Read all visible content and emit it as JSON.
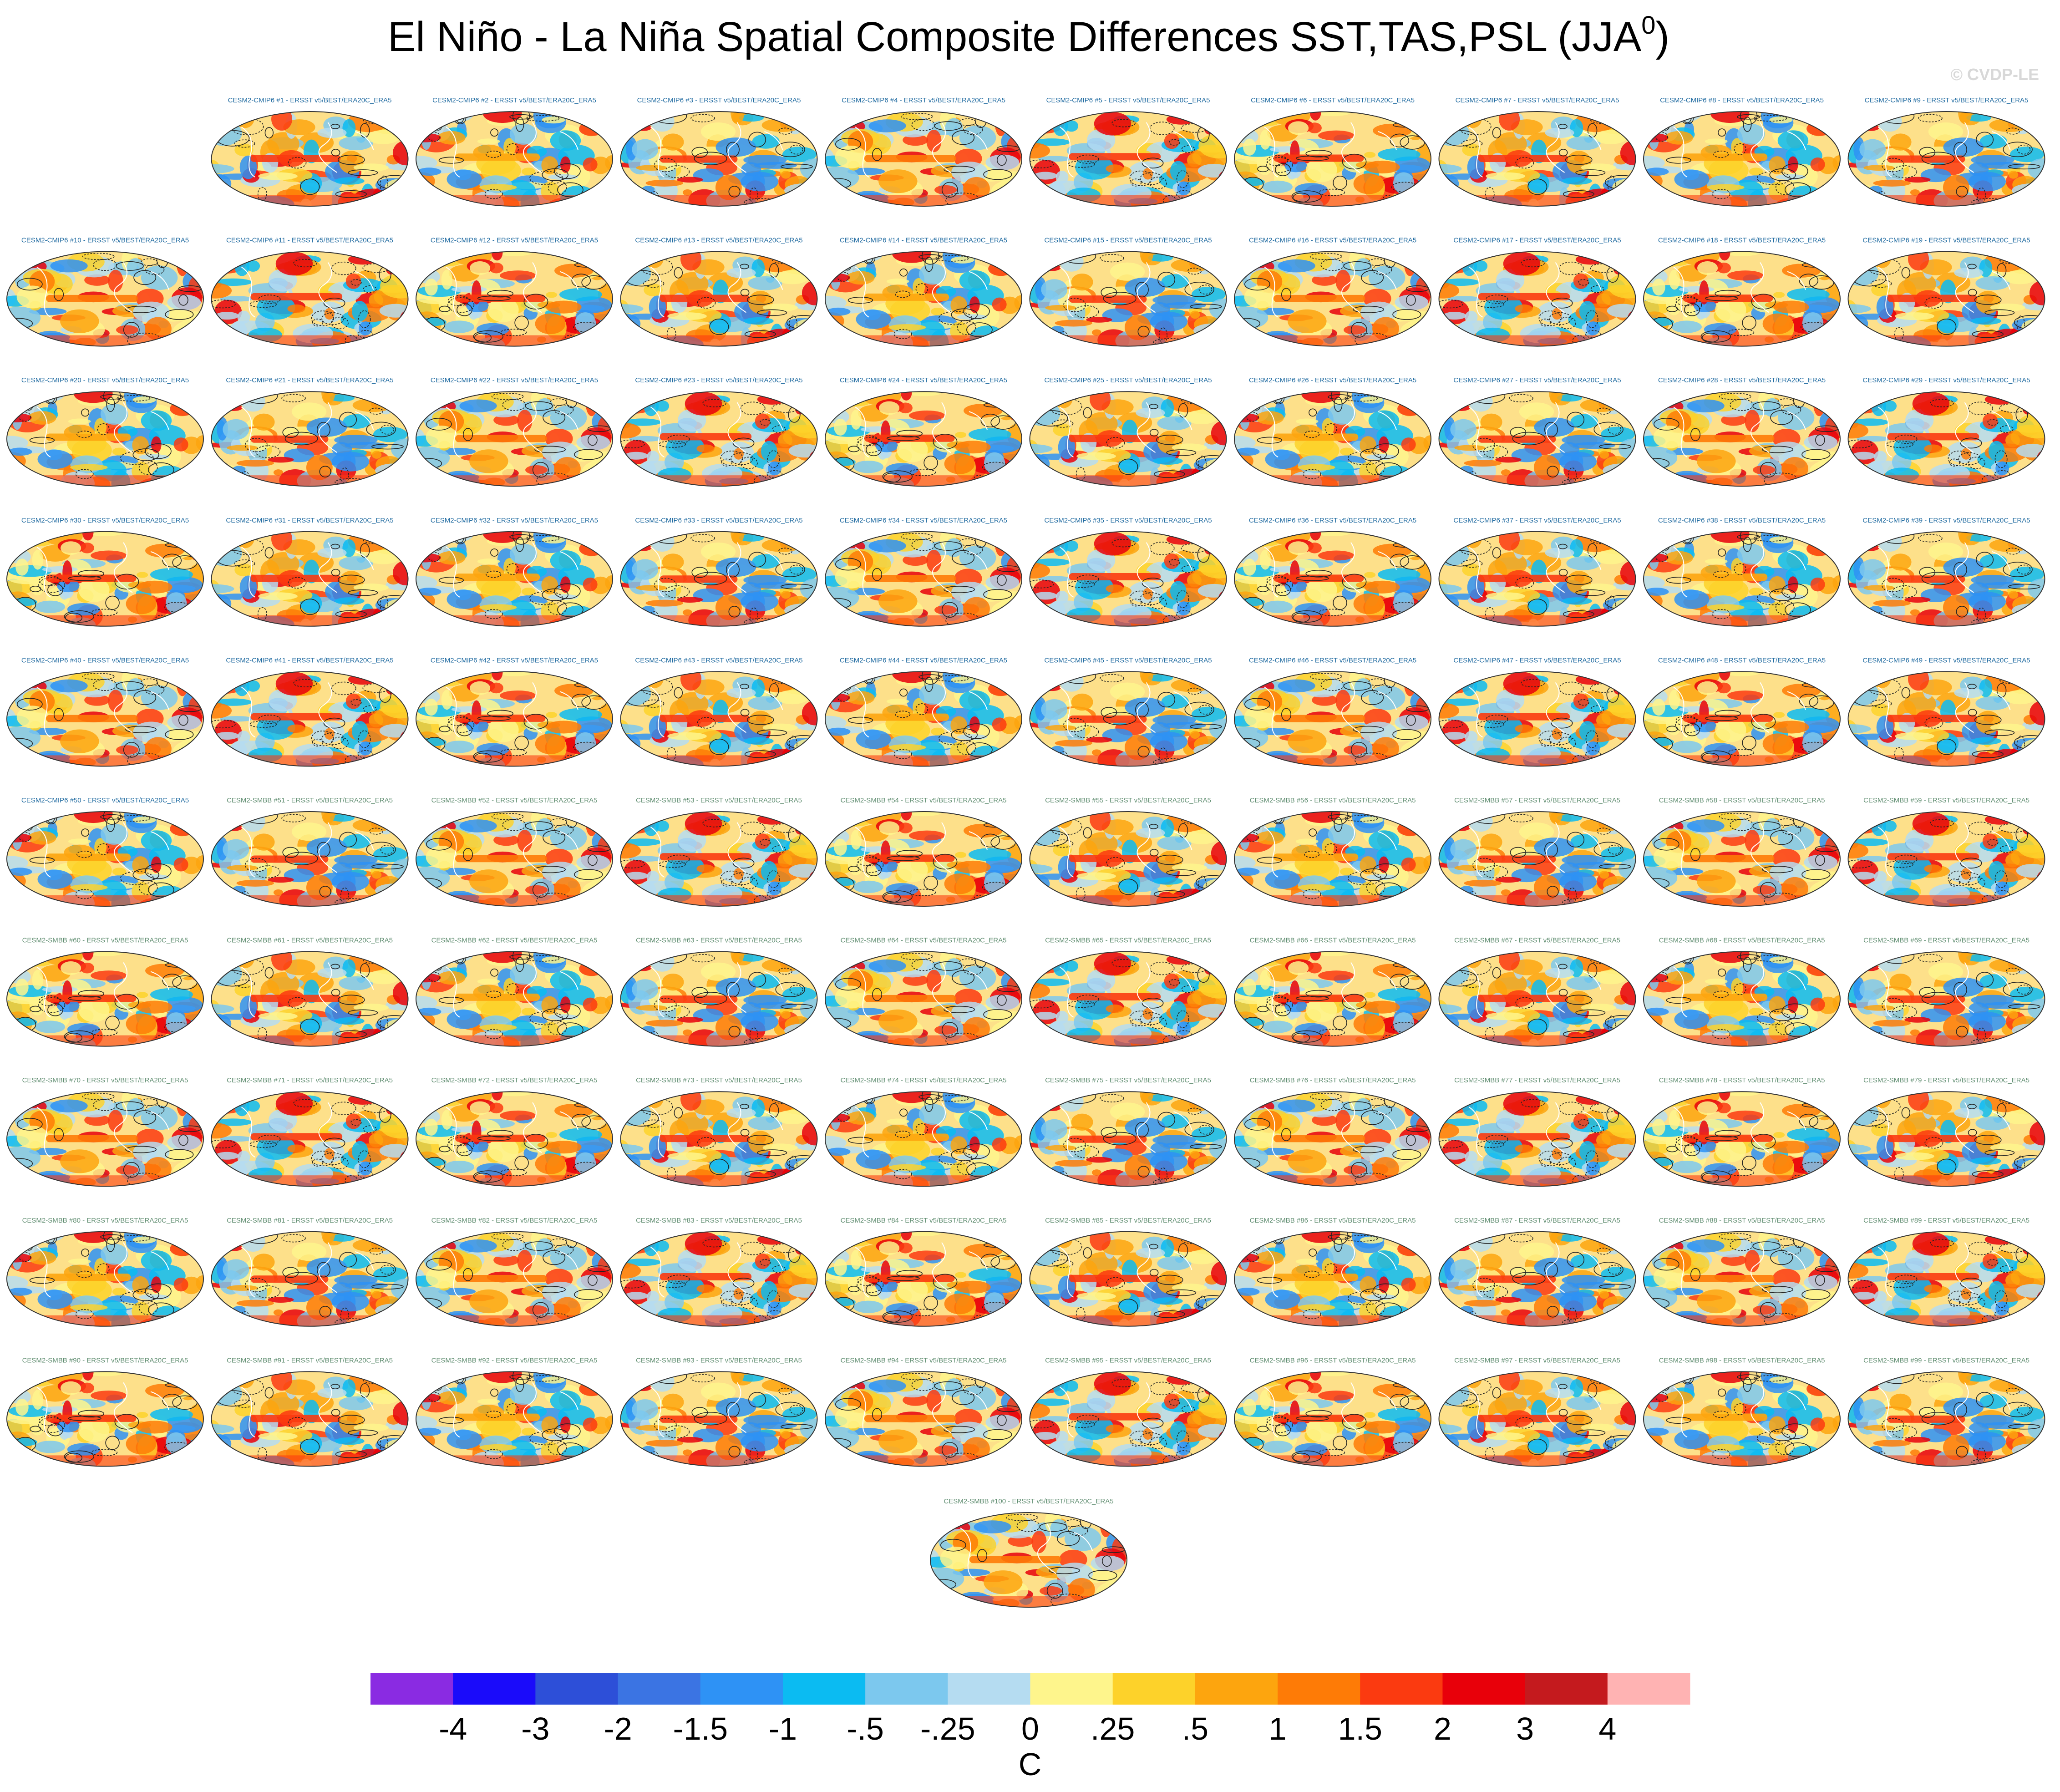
{
  "header": {
    "title": "El Niño - La Niña Spatial Composite Differences SST,TAS,PSL (JJA",
    "title_superscript": "0",
    "title_suffix": ")",
    "watermark": "© CVDP-LE"
  },
  "panels": [
    {
      "label": "CESM2-CMIP6 #1 - ERSST v5/BEST/ERA20C_ERA5"
    },
    {
      "label": "CESM2-CMIP6 #2 - ERSST v5/BEST/ERA20C_ERA5"
    },
    {
      "label": "CESM2-CMIP6 #3 - ERSST v5/BEST/ERA20C_ERA5"
    },
    {
      "label": "CESM2-CMIP6 #4 - ERSST v5/BEST/ERA20C_ERA5"
    },
    {
      "label": "CESM2-CMIP6 #5 - ERSST v5/BEST/ERA20C_ERA5"
    },
    {
      "label": "CESM2-CMIP6 #6 - ERSST v5/BEST/ERA20C_ERA5"
    },
    {
      "label": "CESM2-CMIP6 #7 - ERSST v5/BEST/ERA20C_ERA5"
    },
    {
      "label": "CESM2-CMIP6 #8 - ERSST v5/BEST/ERA20C_ERA5"
    },
    {
      "label": "CESM2-CMIP6 #9 - ERSST v5/BEST/ERA20C_ERA5"
    },
    {
      "label": "CESM2-CMIP6 #10 - ERSST v5/BEST/ERA20C_ERA5"
    },
    {
      "label": "CESM2-CMIP6 #11 - ERSST v5/BEST/ERA20C_ERA5"
    },
    {
      "label": "CESM2-CMIP6 #12 - ERSST v5/BEST/ERA20C_ERA5"
    },
    {
      "label": "CESM2-CMIP6 #13 - ERSST v5/BEST/ERA20C_ERA5"
    },
    {
      "label": "CESM2-CMIP6 #14 - ERSST v5/BEST/ERA20C_ERA5"
    },
    {
      "label": "CESM2-CMIP6 #15 - ERSST v5/BEST/ERA20C_ERA5"
    },
    {
      "label": "CESM2-CMIP6 #16 - ERSST v5/BEST/ERA20C_ERA5"
    },
    {
      "label": "CESM2-CMIP6 #17 - ERSST v5/BEST/ERA20C_ERA5"
    },
    {
      "label": "CESM2-CMIP6 #18 - ERSST v5/BEST/ERA20C_ERA5"
    },
    {
      "label": "CESM2-CMIP6 #19 - ERSST v5/BEST/ERA20C_ERA5"
    },
    {
      "label": "CESM2-CMIP6 #20 - ERSST v5/BEST/ERA20C_ERA5"
    },
    {
      "label": "CESM2-CMIP6 #21 - ERSST v5/BEST/ERA20C_ERA5"
    },
    {
      "label": "CESM2-CMIP6 #22 - ERSST v5/BEST/ERA20C_ERA5"
    },
    {
      "label": "CESM2-CMIP6 #23 - ERSST v5/BEST/ERA20C_ERA5"
    },
    {
      "label": "CESM2-CMIP6 #24 - ERSST v5/BEST/ERA20C_ERA5"
    },
    {
      "label": "CESM2-CMIP6 #25 - ERSST v5/BEST/ERA20C_ERA5"
    },
    {
      "label": "CESM2-CMIP6 #26 - ERSST v5/BEST/ERA20C_ERA5"
    },
    {
      "label": "CESM2-CMIP6 #27 - ERSST v5/BEST/ERA20C_ERA5"
    },
    {
      "label": "CESM2-CMIP6 #28 - ERSST v5/BEST/ERA20C_ERA5"
    },
    {
      "label": "CESM2-CMIP6 #29 - ERSST v5/BEST/ERA20C_ERA5"
    },
    {
      "label": "CESM2-CMIP6 #30 - ERSST v5/BEST/ERA20C_ERA5"
    },
    {
      "label": "CESM2-CMIP6 #31 - ERSST v5/BEST/ERA20C_ERA5"
    },
    {
      "label": "CESM2-CMIP6 #32 - ERSST v5/BEST/ERA20C_ERA5"
    },
    {
      "label": "CESM2-CMIP6 #33 - ERSST v5/BEST/ERA20C_ERA5"
    },
    {
      "label": "CESM2-CMIP6 #34 - ERSST v5/BEST/ERA20C_ERA5"
    },
    {
      "label": "CESM2-CMIP6 #35 - ERSST v5/BEST/ERA20C_ERA5"
    },
    {
      "label": "CESM2-CMIP6 #36 - ERSST v5/BEST/ERA20C_ERA5"
    },
    {
      "label": "CESM2-CMIP6 #37 - ERSST v5/BEST/ERA20C_ERA5"
    },
    {
      "label": "CESM2-CMIP6 #38 - ERSST v5/BEST/ERA20C_ERA5"
    },
    {
      "label": "CESM2-CMIP6 #39 - ERSST v5/BEST/ERA20C_ERA5"
    },
    {
      "label": "CESM2-CMIP6 #40 - ERSST v5/BEST/ERA20C_ERA5"
    },
    {
      "label": "CESM2-CMIP6 #41 - ERSST v5/BEST/ERA20C_ERA5"
    },
    {
      "label": "CESM2-CMIP6 #42 - ERSST v5/BEST/ERA20C_ERA5"
    },
    {
      "label": "CESM2-CMIP6 #43 - ERSST v5/BEST/ERA20C_ERA5"
    },
    {
      "label": "CESM2-CMIP6 #44 - ERSST v5/BEST/ERA20C_ERA5"
    },
    {
      "label": "CESM2-CMIP6 #45 - ERSST v5/BEST/ERA20C_ERA5"
    },
    {
      "label": "CESM2-CMIP6 #46 - ERSST v5/BEST/ERA20C_ERA5"
    },
    {
      "label": "CESM2-CMIP6 #47 - ERSST v5/BEST/ERA20C_ERA5"
    },
    {
      "label": "CESM2-CMIP6 #48 - ERSST v5/BEST/ERA20C_ERA5"
    },
    {
      "label": "CESM2-CMIP6 #49 - ERSST v5/BEST/ERA20C_ERA5"
    },
    {
      "label": "CESM2-CMIP6 #50 - ERSST v5/BEST/ERA20C_ERA5"
    },
    {
      "label": "CESM2-SMBB #51 - ERSST v5/BEST/ERA20C_ERA5"
    },
    {
      "label": "CESM2-SMBB #52 - ERSST v5/BEST/ERA20C_ERA5"
    },
    {
      "label": "CESM2-SMBB #53 - ERSST v5/BEST/ERA20C_ERA5"
    },
    {
      "label": "CESM2-SMBB #54 - ERSST v5/BEST/ERA20C_ERA5"
    },
    {
      "label": "CESM2-SMBB #55 - ERSST v5/BEST/ERA20C_ERA5"
    },
    {
      "label": "CESM2-SMBB #56 - ERSST v5/BEST/ERA20C_ERA5"
    },
    {
      "label": "CESM2-SMBB #57 - ERSST v5/BEST/ERA20C_ERA5"
    },
    {
      "label": "CESM2-SMBB #58 - ERSST v5/BEST/ERA20C_ERA5"
    },
    {
      "label": "CESM2-SMBB #59 - ERSST v5/BEST/ERA20C_ERA5"
    },
    {
      "label": "CESM2-SMBB #60 - ERSST v5/BEST/ERA20C_ERA5"
    },
    {
      "label": "CESM2-SMBB #61 - ERSST v5/BEST/ERA20C_ERA5"
    },
    {
      "label": "CESM2-SMBB #62 - ERSST v5/BEST/ERA20C_ERA5"
    },
    {
      "label": "CESM2-SMBB #63 - ERSST v5/BEST/ERA20C_ERA5"
    },
    {
      "label": "CESM2-SMBB #64 - ERSST v5/BEST/ERA20C_ERA5"
    },
    {
      "label": "CESM2-SMBB #65 - ERSST v5/BEST/ERA20C_ERA5"
    },
    {
      "label": "CESM2-SMBB #66 - ERSST v5/BEST/ERA20C_ERA5"
    },
    {
      "label": "CESM2-SMBB #67 - ERSST v5/BEST/ERA20C_ERA5"
    },
    {
      "label": "CESM2-SMBB #68 - ERSST v5/BEST/ERA20C_ERA5"
    },
    {
      "label": "CESM2-SMBB #69 - ERSST v5/BEST/ERA20C_ERA5"
    },
    {
      "label": "CESM2-SMBB #70 - ERSST v5/BEST/ERA20C_ERA5"
    },
    {
      "label": "CESM2-SMBB #71 - ERSST v5/BEST/ERA20C_ERA5"
    },
    {
      "label": "CESM2-SMBB #72 - ERSST v5/BEST/ERA20C_ERA5"
    },
    {
      "label": "CESM2-SMBB #73 - ERSST v5/BEST/ERA20C_ERA5"
    },
    {
      "label": "CESM2-SMBB #74 - ERSST v5/BEST/ERA20C_ERA5"
    },
    {
      "label": "CESM2-SMBB #75 - ERSST v5/BEST/ERA20C_ERA5"
    },
    {
      "label": "CESM2-SMBB #76 - ERSST v5/BEST/ERA20C_ERA5"
    },
    {
      "label": "CESM2-SMBB #77 - ERSST v5/BEST/ERA20C_ERA5"
    },
    {
      "label": "CESM2-SMBB #78 - ERSST v5/BEST/ERA20C_ERA5"
    },
    {
      "label": "CESM2-SMBB #79 - ERSST v5/BEST/ERA20C_ERA5"
    },
    {
      "label": "CESM2-SMBB #80 - ERSST v5/BEST/ERA20C_ERA5"
    },
    {
      "label": "CESM2-SMBB #81 - ERSST v5/BEST/ERA20C_ERA5"
    },
    {
      "label": "CESM2-SMBB #82 - ERSST v5/BEST/ERA20C_ERA5"
    },
    {
      "label": "CESM2-SMBB #83 - ERSST v5/BEST/ERA20C_ERA5"
    },
    {
      "label": "CESM2-SMBB #84 - ERSST v5/BEST/ERA20C_ERA5"
    },
    {
      "label": "CESM2-SMBB #85 - ERSST v5/BEST/ERA20C_ERA5"
    },
    {
      "label": "CESM2-SMBB #86 - ERSST v5/BEST/ERA20C_ERA5"
    },
    {
      "label": "CESM2-SMBB #87 - ERSST v5/BEST/ERA20C_ERA5"
    },
    {
      "label": "CESM2-SMBB #88 - ERSST v5/BEST/ERA20C_ERA5"
    },
    {
      "label": "CESM2-SMBB #89 - ERSST v5/BEST/ERA20C_ERA5"
    },
    {
      "label": "CESM2-SMBB #90 - ERSST v5/BEST/ERA20C_ERA5"
    },
    {
      "label": "CESM2-SMBB #91 - ERSST v5/BEST/ERA20C_ERA5"
    },
    {
      "label": "CESM2-SMBB #92 - ERSST v5/BEST/ERA20C_ERA5"
    },
    {
      "label": "CESM2-SMBB #93 - ERSST v5/BEST/ERA20C_ERA5"
    },
    {
      "label": "CESM2-SMBB #94 - ERSST v5/BEST/ERA20C_ERA5"
    },
    {
      "label": "CESM2-SMBB #95 - ERSST v5/BEST/ERA20C_ERA5"
    },
    {
      "label": "CESM2-SMBB #96 - ERSST v5/BEST/ERA20C_ERA5"
    },
    {
      "label": "CESM2-SMBB #97 - ERSST v5/BEST/ERA20C_ERA5"
    },
    {
      "label": "CESM2-SMBB #98 - ERSST v5/BEST/ERA20C_ERA5"
    },
    {
      "label": "CESM2-SMBB #99 - ERSST v5/BEST/ERA20C_ERA5"
    },
    {
      "label": "CESM2-SMBB #100 - ERSST v5/BEST/ERA20C_ERA5"
    }
  ],
  "colorbar": {
    "colors": [
      "#8a2be2",
      "#1a0bfa",
      "#2d4fd8",
      "#3b74e3",
      "#2e92f5",
      "#0bbbf2",
      "#7cc8ee",
      "#b5dcf1",
      "#fef58c",
      "#fdd22a",
      "#fda50e",
      "#fe7b06",
      "#fb3a10",
      "#e8000a",
      "#c41a1e",
      "#ffb3b3"
    ],
    "labels": [
      "-4",
      "-3",
      "-2",
      "-1.5",
      "-1",
      "-.5",
      "-.25",
      "0",
      ".25",
      ".5",
      "1",
      "1.5",
      "2",
      "3",
      "4"
    ],
    "unit": "C"
  }
}
